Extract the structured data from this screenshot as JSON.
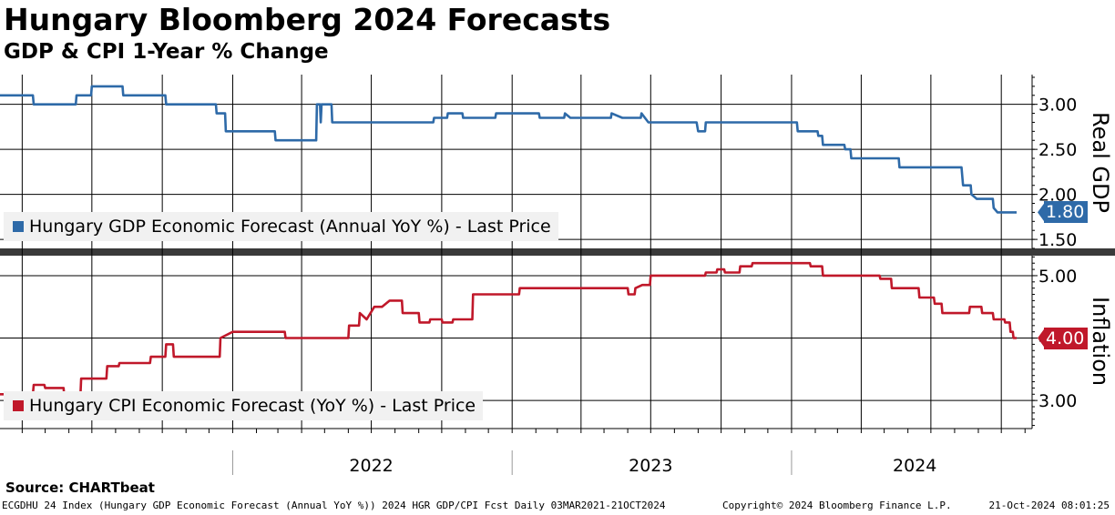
{
  "header": {
    "title": "Hungary Bloomberg 2024 Forecasts",
    "subtitle": "GDP & CPI 1-Year % Change"
  },
  "colors": {
    "gdp": "#2e6aa8",
    "cpi": "#c0182a",
    "legend_bg": "#f1f1f1",
    "grid": "#000000"
  },
  "chart_data": [
    {
      "type": "line",
      "title": "Real GDP",
      "ylabel": "Real GDP",
      "ylim": [
        1.4,
        3.33
      ],
      "yticks": [
        1.5,
        2.0,
        2.5,
        3.0
      ],
      "ytick_labels": [
        "1.50",
        "2.00",
        "2.50",
        "3.00"
      ],
      "xlim": [
        "2021-03-03",
        "2024-10-21"
      ],
      "xticks": [
        "2022",
        "2023",
        "2024"
      ],
      "series": [
        {
          "name": "Hungary GDP Economic Forecast (Annual YoY %) - Last Price",
          "last_value": 1.8,
          "last_label": "1.80",
          "points": [
            [
              "2021-03-03",
              3.1
            ],
            [
              "2021-04-15",
              3.1
            ],
            [
              "2021-04-16",
              3.0
            ],
            [
              "2021-06-10",
              3.0
            ],
            [
              "2021-06-11",
              3.1
            ],
            [
              "2021-06-30",
              3.1
            ],
            [
              "2021-07-01",
              3.2
            ],
            [
              "2021-08-10",
              3.2
            ],
            [
              "2021-08-11",
              3.1
            ],
            [
              "2021-09-10",
              3.1
            ],
            [
              "2021-09-11",
              3.1
            ],
            [
              "2021-10-05",
              3.1
            ],
            [
              "2021-10-06",
              3.0
            ],
            [
              "2021-12-10",
              3.0
            ],
            [
              "2021-12-11",
              2.9
            ],
            [
              "2021-12-22",
              2.9
            ],
            [
              "2021-12-23",
              2.7
            ],
            [
              "2022-02-25",
              2.7
            ],
            [
              "2022-02-26",
              2.6
            ],
            [
              "2022-04-20",
              2.6
            ],
            [
              "2022-04-21",
              3.0
            ],
            [
              "2022-04-25",
              3.0
            ],
            [
              "2022-04-26",
              2.8
            ],
            [
              "2022-04-27",
              3.0
            ],
            [
              "2022-05-10",
              3.0
            ],
            [
              "2022-05-11",
              2.8
            ],
            [
              "2022-09-20",
              2.8
            ],
            [
              "2022-09-21",
              2.85
            ],
            [
              "2022-10-08",
              2.85
            ],
            [
              "2022-10-09",
              2.9
            ],
            [
              "2022-10-28",
              2.9
            ],
            [
              "2022-10-29",
              2.85
            ],
            [
              "2022-12-10",
              2.85
            ],
            [
              "2022-12-11",
              2.9
            ],
            [
              "2023-02-05",
              2.9
            ],
            [
              "2023-02-06",
              2.85
            ],
            [
              "2023-03-10",
              2.85
            ],
            [
              "2023-03-11",
              2.9
            ],
            [
              "2023-03-18",
              2.85
            ],
            [
              "2023-05-10",
              2.85
            ],
            [
              "2023-05-11",
              2.9
            ],
            [
              "2023-05-25",
              2.85
            ],
            [
              "2023-06-18",
              2.85
            ],
            [
              "2023-06-19",
              2.9
            ],
            [
              "2023-06-28",
              2.8
            ],
            [
              "2023-08-30",
              2.8
            ],
            [
              "2023-09-01",
              2.7
            ],
            [
              "2023-09-10",
              2.7
            ],
            [
              "2023-09-11",
              2.8
            ],
            [
              "2024-01-08",
              2.8
            ],
            [
              "2024-01-09",
              2.7
            ],
            [
              "2024-02-04",
              2.7
            ],
            [
              "2024-02-05",
              2.65
            ],
            [
              "2024-02-10",
              2.65
            ],
            [
              "2024-02-11",
              2.55
            ],
            [
              "2024-03-10",
              2.55
            ],
            [
              "2024-03-11",
              2.5
            ],
            [
              "2024-03-18",
              2.5
            ],
            [
              "2024-03-19",
              2.4
            ],
            [
              "2024-05-20",
              2.4
            ],
            [
              "2024-05-21",
              2.3
            ],
            [
              "2024-08-10",
              2.3
            ],
            [
              "2024-08-12",
              2.1
            ],
            [
              "2024-08-22",
              2.1
            ],
            [
              "2024-08-23",
              2.0
            ],
            [
              "2024-08-30",
              1.95
            ],
            [
              "2024-09-20",
              1.95
            ],
            [
              "2024-09-21",
              1.85
            ],
            [
              "2024-09-26",
              1.8
            ],
            [
              "2024-10-21",
              1.8
            ]
          ]
        }
      ]
    },
    {
      "type": "line",
      "title": "Inflation",
      "ylabel": "Inflation",
      "ylim": [
        2.55,
        5.32
      ],
      "yticks": [
        3.0,
        4.0,
        5.0
      ],
      "ytick_labels": [
        "3.00",
        "4.00",
        "5.00"
      ],
      "xlim": [
        "2021-03-03",
        "2024-10-21"
      ],
      "xticks": [
        "2022",
        "2023",
        "2024"
      ],
      "series": [
        {
          "name": "Hungary CPI Economic Forecast (YoY %) - Last Price",
          "last_value": 4.0,
          "last_label": "4.00",
          "points": [
            [
              "2021-03-03",
              3.1
            ],
            [
              "2021-04-15",
              3.1
            ],
            [
              "2021-04-16",
              3.25
            ],
            [
              "2021-04-30",
              3.25
            ],
            [
              "2021-05-01",
              3.2
            ],
            [
              "2021-05-25",
              3.2
            ],
            [
              "2021-05-26",
              3.05
            ],
            [
              "2021-06-16",
              3.05
            ],
            [
              "2021-06-17",
              3.35
            ],
            [
              "2021-07-20",
              3.35
            ],
            [
              "2021-07-21",
              3.55
            ],
            [
              "2021-08-05",
              3.55
            ],
            [
              "2021-08-06",
              3.6
            ],
            [
              "2021-09-15",
              3.6
            ],
            [
              "2021-09-16",
              3.7
            ],
            [
              "2021-10-05",
              3.7
            ],
            [
              "2021-10-06",
              3.9
            ],
            [
              "2021-10-15",
              3.9
            ],
            [
              "2021-10-16",
              3.7
            ],
            [
              "2021-12-15",
              3.7
            ],
            [
              "2021-12-16",
              4.0
            ],
            [
              "2022-01-01",
              4.1
            ],
            [
              "2022-03-10",
              4.1
            ],
            [
              "2022-03-11",
              4.0
            ],
            [
              "2022-06-01",
              4.0
            ],
            [
              "2022-06-02",
              4.2
            ],
            [
              "2022-06-15",
              4.2
            ],
            [
              "2022-06-16",
              4.4
            ],
            [
              "2022-06-25",
              4.3
            ],
            [
              "2022-07-05",
              4.5
            ],
            [
              "2022-07-15",
              4.5
            ],
            [
              "2022-07-25",
              4.6
            ],
            [
              "2022-08-10",
              4.6
            ],
            [
              "2022-08-11",
              4.4
            ],
            [
              "2022-09-01",
              4.4
            ],
            [
              "2022-09-02",
              4.25
            ],
            [
              "2022-09-15",
              4.25
            ],
            [
              "2022-09-16",
              4.3
            ],
            [
              "2022-10-01",
              4.3
            ],
            [
              "2022-10-02",
              4.25
            ],
            [
              "2022-10-15",
              4.25
            ],
            [
              "2022-10-16",
              4.3
            ],
            [
              "2022-11-10",
              4.3
            ],
            [
              "2022-11-11",
              4.7
            ],
            [
              "2023-01-10",
              4.7
            ],
            [
              "2023-01-11",
              4.8
            ],
            [
              "2023-06-01",
              4.8
            ],
            [
              "2023-06-02",
              4.7
            ],
            [
              "2023-06-10",
              4.7
            ],
            [
              "2023-06-11",
              4.8
            ],
            [
              "2023-06-20",
              4.85
            ],
            [
              "2023-06-30",
              4.85
            ],
            [
              "2023-07-01",
              5.0
            ],
            [
              "2023-09-10",
              5.0
            ],
            [
              "2023-09-11",
              5.05
            ],
            [
              "2023-09-25",
              5.05
            ],
            [
              "2023-09-26",
              5.1
            ],
            [
              "2023-10-05",
              5.1
            ],
            [
              "2023-10-06",
              5.05
            ],
            [
              "2023-10-25",
              5.05
            ],
            [
              "2023-10-26",
              5.15
            ],
            [
              "2023-11-10",
              5.15
            ],
            [
              "2023-11-11",
              5.2
            ],
            [
              "2024-01-25",
              5.2
            ],
            [
              "2024-01-26",
              5.15
            ],
            [
              "2024-02-10",
              5.15
            ],
            [
              "2024-02-11",
              5.0
            ],
            [
              "2024-04-25",
              5.0
            ],
            [
              "2024-04-26",
              4.95
            ],
            [
              "2024-05-10",
              4.95
            ],
            [
              "2024-05-11",
              4.8
            ],
            [
              "2024-06-15",
              4.8
            ],
            [
              "2024-06-16",
              4.65
            ],
            [
              "2024-07-05",
              4.65
            ],
            [
              "2024-07-06",
              4.55
            ],
            [
              "2024-07-15",
              4.55
            ],
            [
              "2024-07-16",
              4.4
            ],
            [
              "2024-08-20",
              4.4
            ],
            [
              "2024-08-21",
              4.5
            ],
            [
              "2024-09-05",
              4.5
            ],
            [
              "2024-09-06",
              4.4
            ],
            [
              "2024-09-20",
              4.4
            ],
            [
              "2024-09-21",
              4.3
            ],
            [
              "2024-10-05",
              4.3
            ],
            [
              "2024-10-06",
              4.25
            ],
            [
              "2024-10-12",
              4.25
            ],
            [
              "2024-10-13",
              4.1
            ],
            [
              "2024-10-16",
              4.1
            ],
            [
              "2024-10-17",
              4.0
            ],
            [
              "2024-10-21",
              4.0
            ]
          ]
        }
      ]
    }
  ],
  "source": "Source: CHARTbeat",
  "footer": {
    "left": "ECGDHU 24 Index (Hungary GDP Economic Forecast (Annual YoY %)) 2024 HGR GDP/CPI Fcst  Daily 03MAR2021-21OCT2024",
    "copyright": "Copyright© 2024 Bloomberg Finance L.P.",
    "timestamp": "21-Oct-2024 08:01:25"
  }
}
